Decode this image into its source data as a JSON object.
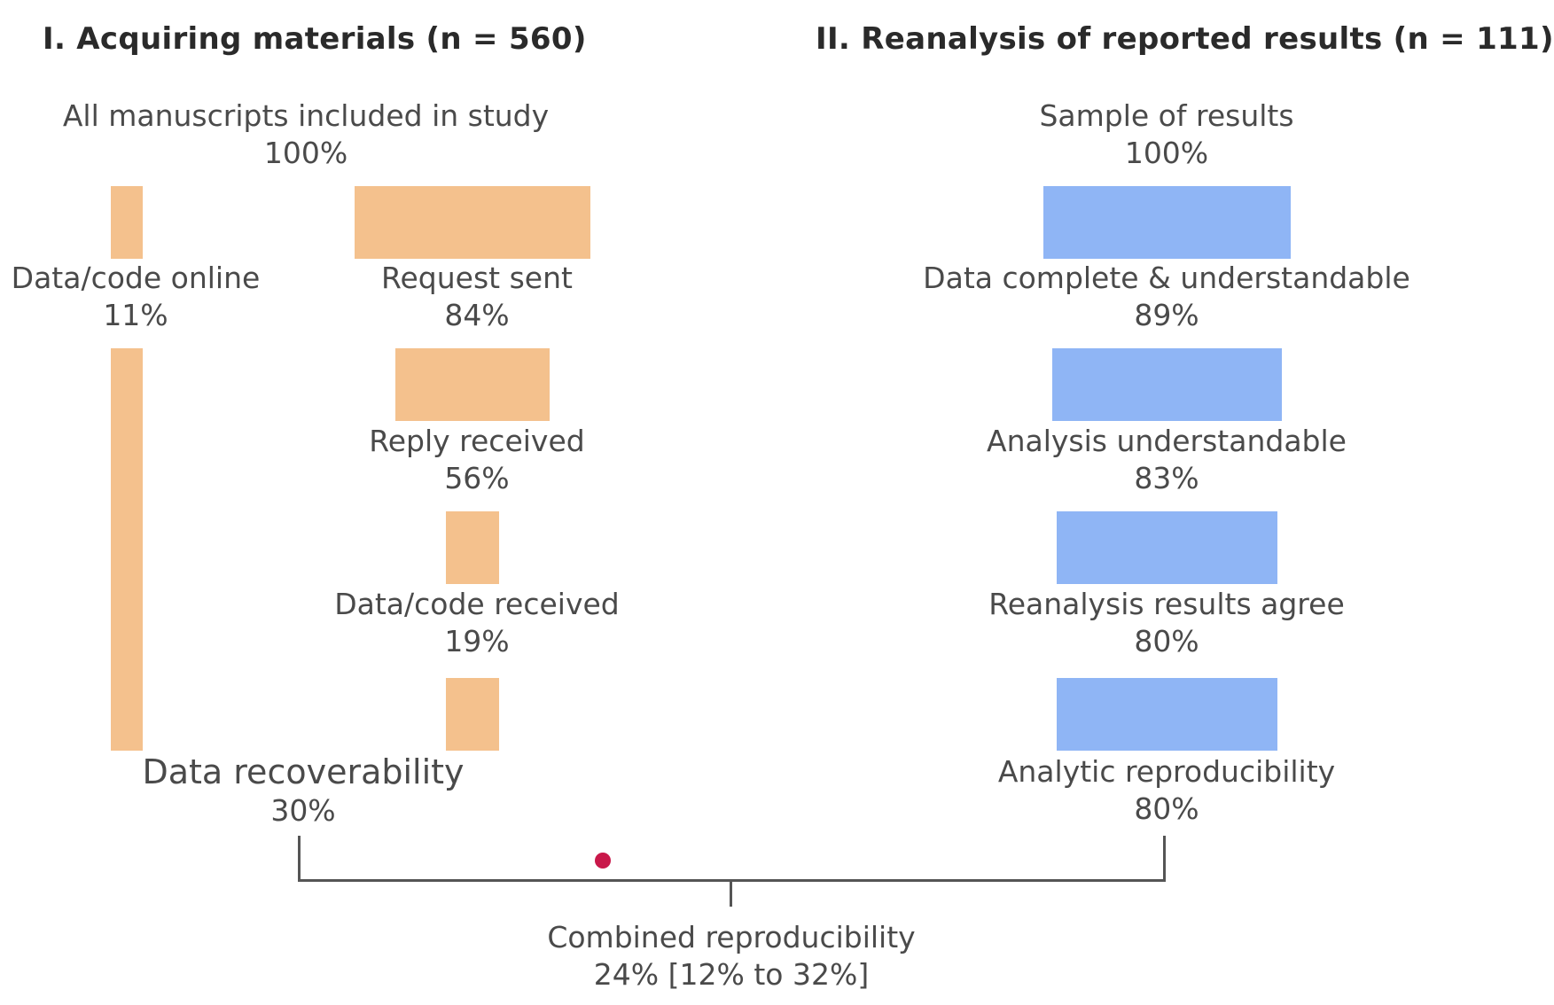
{
  "headings": {
    "left": "I. Acquiring materials (n = 560)",
    "right": "II. Reanalysis of reported results (n = 111)"
  },
  "left": {
    "root": {
      "name": "All manuscripts included in study",
      "pct": "100%"
    },
    "online": {
      "name": "Data/code online",
      "pct": "11%"
    },
    "request": {
      "name": "Request sent",
      "pct": "84%"
    },
    "reply": {
      "name": "Reply received",
      "pct": "56%"
    },
    "received": {
      "name": "Data/code received",
      "pct": "19%"
    },
    "recoverability": {
      "name": "Data recoverability",
      "pct": "30%"
    }
  },
  "right": {
    "root": {
      "name": "Sample of results",
      "pct": "100%"
    },
    "complete": {
      "name": "Data complete & understandable",
      "pct": "89%"
    },
    "analysis": {
      "name": "Analysis understandable",
      "pct": "83%"
    },
    "agree": {
      "name": "Reanalysis results agree",
      "pct": "80%"
    },
    "reproducibility": {
      "name": "Analytic reproducibility",
      "pct": "80%"
    }
  },
  "combined": {
    "name": "Combined reproducibility",
    "value": "24% [12% to 32%]"
  },
  "colors": {
    "acquiring": "#f4c18d",
    "reanalysis": "#8fb5f5",
    "marker": "#c9184a",
    "bracket": "#555555"
  }
}
